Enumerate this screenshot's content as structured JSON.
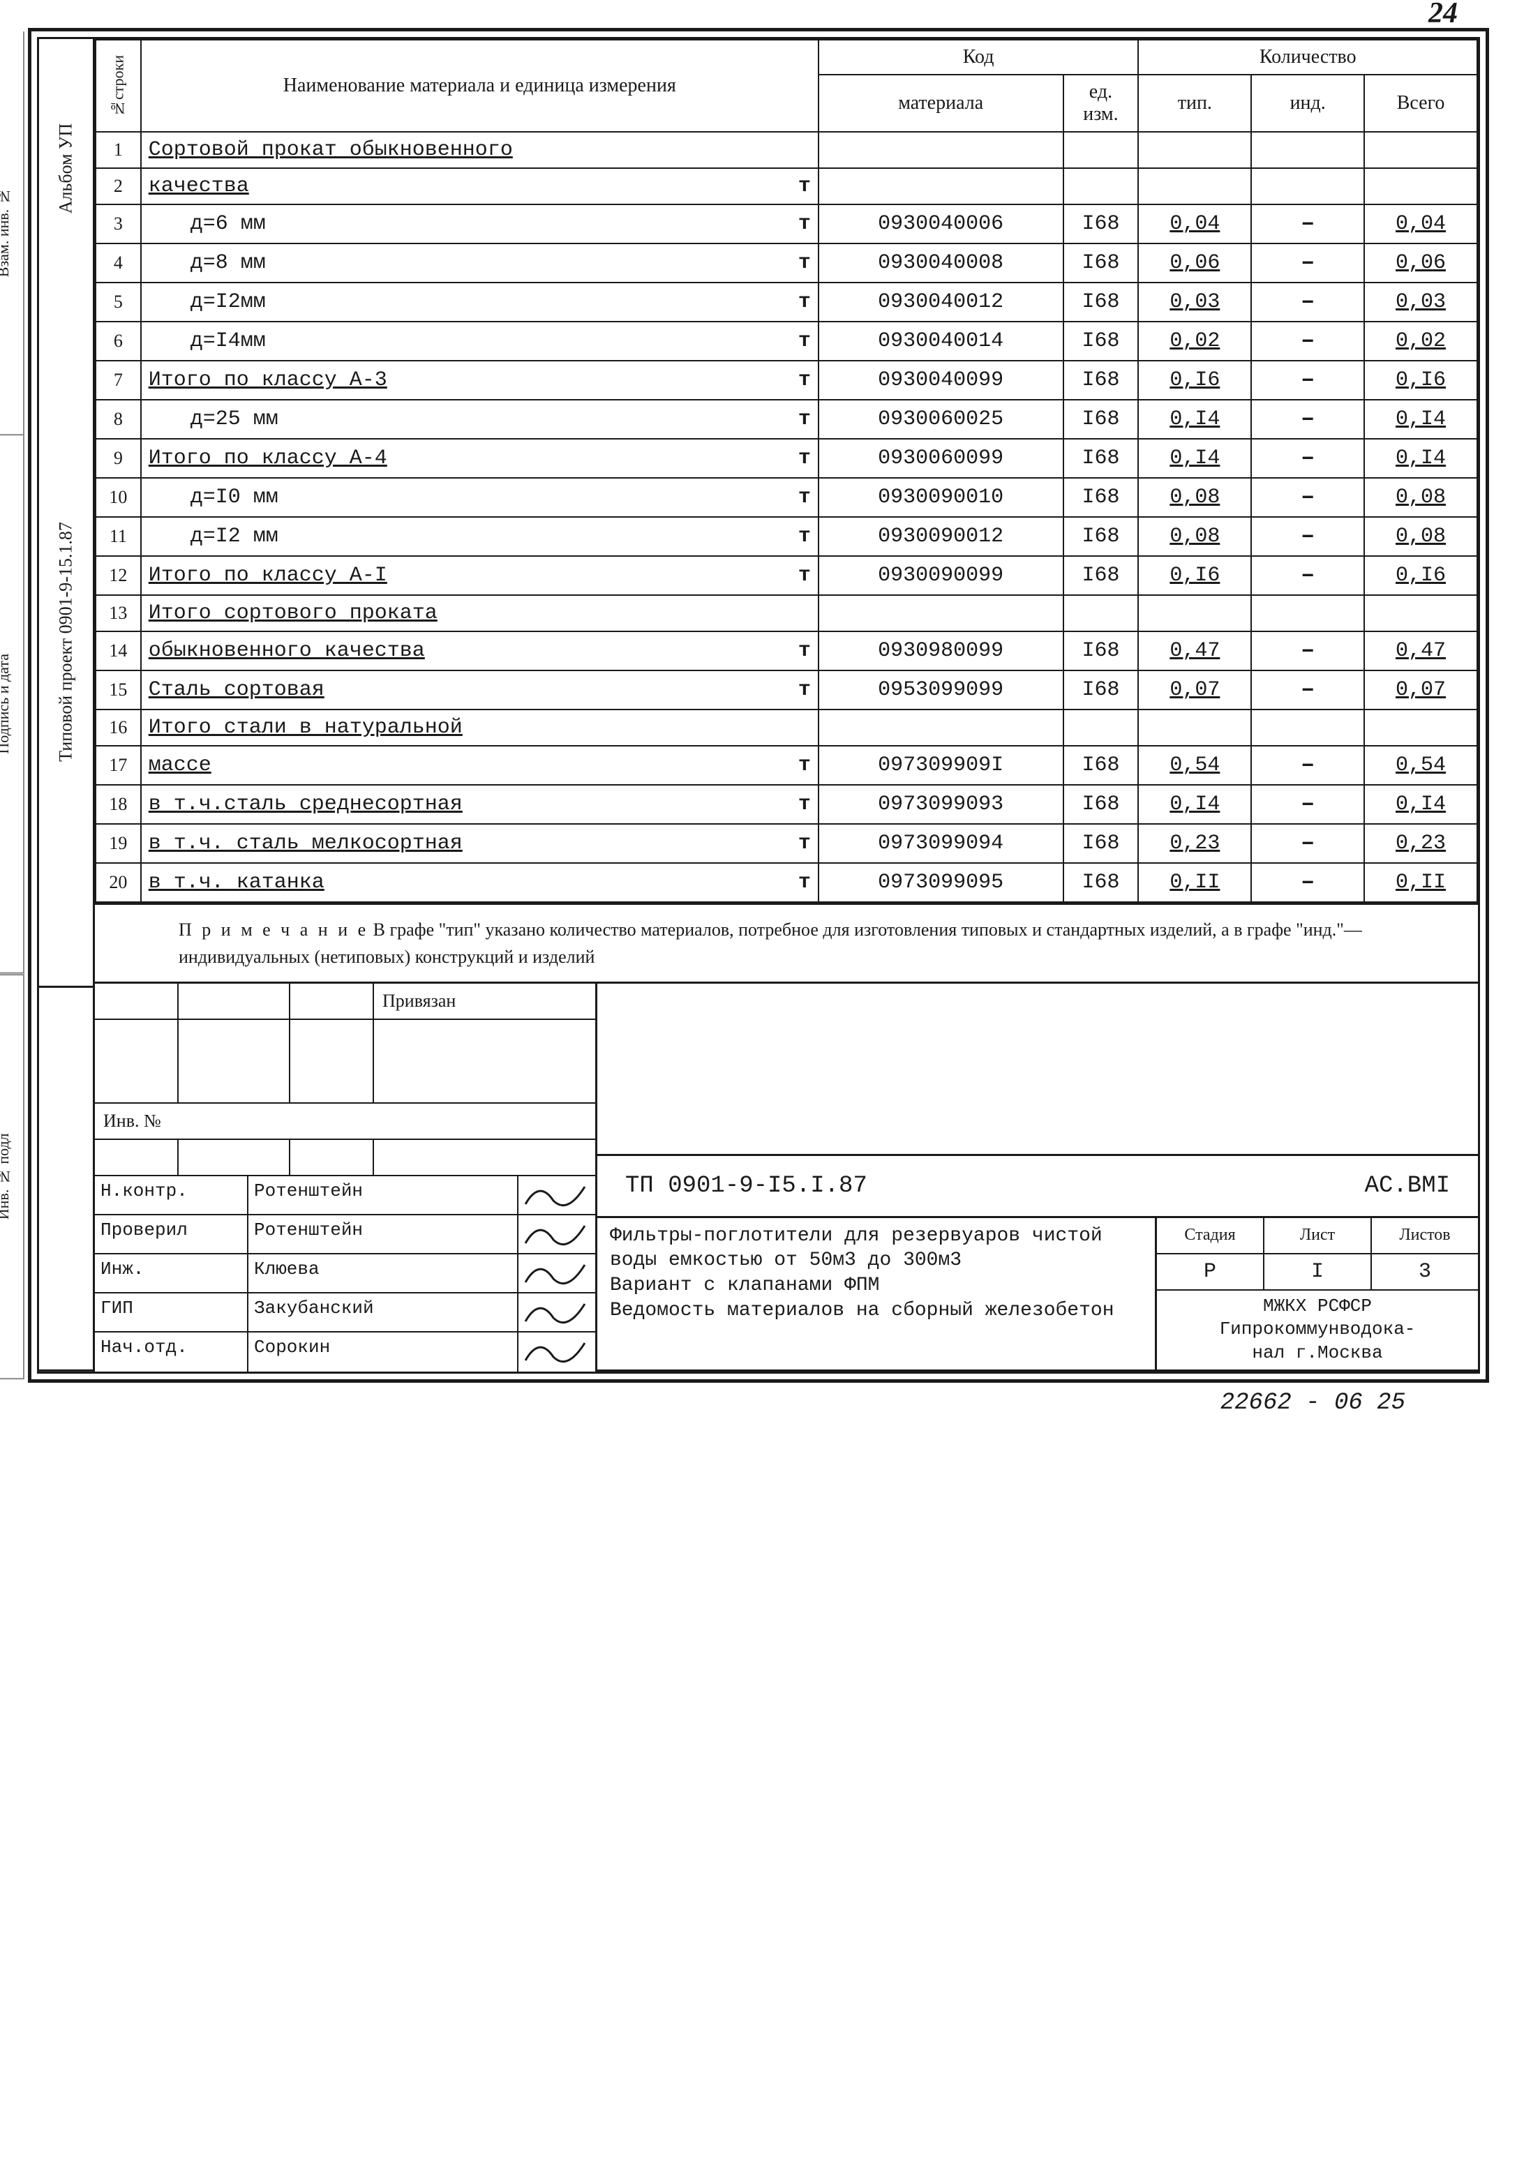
{
  "page_number": "24",
  "footer_code": "22662 - 06  25",
  "side_labels": {
    "album": "Альбом УП",
    "project": "Типовой проект  0901-9-15.1.87"
  },
  "ext_labels": [
    "Взам. инв. №",
    "Подпись и дата",
    "Инв. № подл"
  ],
  "headers": {
    "row_col": "№строки",
    "name": "Наименование материала и единица измерения",
    "code_group": "Код",
    "code_mat": "материала",
    "code_ed": "ед. изм.",
    "qty_group": "Количество",
    "typ": "тип.",
    "ind": "инд.",
    "total": "Всего"
  },
  "rows": [
    {
      "n": "1",
      "name": "Сортовой прокат обыкновенного",
      "indent": false,
      "under": true,
      "unit": "",
      "code": "",
      "ed": "",
      "typ": "",
      "ind": "",
      "tot": ""
    },
    {
      "n": "2",
      "name": "качества",
      "indent": false,
      "under": true,
      "unit": "т",
      "code": "",
      "ed": "",
      "typ": "",
      "ind": "",
      "tot": ""
    },
    {
      "n": "3",
      "name": "д=6 мм",
      "indent": true,
      "under": false,
      "unit": "т",
      "code": "0930040006",
      "ed": "I68",
      "typ": "0,04",
      "ind": "–",
      "tot": "0,04"
    },
    {
      "n": "4",
      "name": "д=8 мм",
      "indent": true,
      "under": false,
      "unit": "т",
      "code": "0930040008",
      "ed": "I68",
      "typ": "0,06",
      "ind": "–",
      "tot": "0,06"
    },
    {
      "n": "5",
      "name": "д=I2мм",
      "indent": true,
      "under": false,
      "unit": "т",
      "code": "0930040012",
      "ed": "I68",
      "typ": "0,03",
      "ind": "–",
      "tot": "0,03"
    },
    {
      "n": "6",
      "name": "д=I4мм",
      "indent": true,
      "under": false,
      "unit": "т",
      "code": "0930040014",
      "ed": "I68",
      "typ": "0,02",
      "ind": "–",
      "tot": "0,02"
    },
    {
      "n": "7",
      "name": "Итого по классу А-3",
      "indent": false,
      "under": true,
      "unit": "т",
      "code": "0930040099",
      "ed": "I68",
      "typ": "0,I6",
      "ind": "–",
      "tot": "0,I6"
    },
    {
      "n": "8",
      "name": "д=25 мм",
      "indent": true,
      "under": false,
      "unit": "т",
      "code": "0930060025",
      "ed": "I68",
      "typ": "0,I4",
      "ind": "–",
      "tot": "0,I4"
    },
    {
      "n": "9",
      "name": "Итого по классу А-4",
      "indent": false,
      "under": true,
      "unit": "т",
      "code": "0930060099",
      "ed": "I68",
      "typ": "0,I4",
      "ind": "–",
      "tot": "0,I4"
    },
    {
      "n": "10",
      "name": "д=I0 мм",
      "indent": true,
      "under": false,
      "unit": "т",
      "code": "0930090010",
      "ed": "I68",
      "typ": "0,08",
      "ind": "–",
      "tot": "0,08"
    },
    {
      "n": "11",
      "name": "д=I2 мм",
      "indent": true,
      "under": false,
      "unit": "т",
      "code": "0930090012",
      "ed": "I68",
      "typ": "0,08",
      "ind": "–",
      "tot": "0,08"
    },
    {
      "n": "12",
      "name": "Итого по классу А-I",
      "indent": false,
      "under": true,
      "unit": "т",
      "code": "0930090099",
      "ed": "I68",
      "typ": "0,I6",
      "ind": "–",
      "tot": "0,I6"
    },
    {
      "n": "13",
      "name": "Итого сортового проката",
      "indent": false,
      "under": true,
      "unit": "",
      "code": "",
      "ed": "",
      "typ": "",
      "ind": "",
      "tot": ""
    },
    {
      "n": "14",
      "name": "обыкновенного качества",
      "indent": false,
      "under": true,
      "unit": "т",
      "code": "0930980099",
      "ed": "I68",
      "typ": "0,47",
      "ind": "–",
      "tot": "0,47"
    },
    {
      "n": "15",
      "name": "Сталь сортовая",
      "indent": false,
      "under": true,
      "unit": "т",
      "code": "0953099099",
      "ed": "I68",
      "typ": "0,07",
      "ind": "–",
      "tot": "0,07"
    },
    {
      "n": "16",
      "name": "Итого стали в натуральной",
      "indent": false,
      "under": true,
      "unit": "",
      "code": "",
      "ed": "",
      "typ": "",
      "ind": "",
      "tot": ""
    },
    {
      "n": "17",
      "name": "массе",
      "indent": false,
      "under": true,
      "unit": "т",
      "code": "097309909I",
      "ed": "I68",
      "typ": "0,54",
      "ind": "–",
      "tot": "0,54"
    },
    {
      "n": "18",
      "name": "в т.ч.сталь среднесортная",
      "indent": false,
      "under": true,
      "unit": "т",
      "code": "0973099093",
      "ed": "I68",
      "typ": "0,I4",
      "ind": "–",
      "tot": "0,I4"
    },
    {
      "n": "19",
      "name": "в т.ч. сталь мелкосортная",
      "indent": false,
      "under": true,
      "unit": "т",
      "code": "0973099094",
      "ed": "I68",
      "typ": "0,23",
      "ind": "–",
      "tot": "0,23"
    },
    {
      "n": "20",
      "name": "в т.ч. катанка",
      "indent": false,
      "under": true,
      "unit": "т",
      "code": "0973099095",
      "ed": "I68",
      "typ": "0,II",
      "ind": "–",
      "tot": "0,II"
    }
  ],
  "note": {
    "label": "П р и м е ч а н и е",
    "text": "В графе \"тип\" указано количество материалов, потребное для изготовления типовых и стандартных изделий, а в графе \"инд.\"— индивидуальных (нетиповых) конструкций и изделий"
  },
  "stamp": {
    "bound": "Привязан",
    "inv": "Инв. №",
    "code": "ТП   0901-9-I5.I.87",
    "series": "АС.ВМI",
    "signatures": [
      {
        "role": "Н.контр.",
        "name": "Ротенштейн"
      },
      {
        "role": "Проверил",
        "name": "Ротенштейн"
      },
      {
        "role": "Инж.",
        "name": "Клюева"
      },
      {
        "role": "ГИП",
        "name": "Закубанский"
      },
      {
        "role": "Нач.отд.",
        "name": "Сорокин"
      }
    ],
    "desc": "Фильтры-поглотители для резервуаров чистой воды емкостью от 50м3 до 300м3\nВариант с клапанами ФПМ\nВедомость материалов на сборный железобетон",
    "mini_headers": [
      "Стадия",
      "Лист",
      "Листов"
    ],
    "mini_values": [
      "Р",
      "I",
      "3"
    ],
    "org": "МЖКХ РСФСР\nГипрокоммунводока-\nнал г.Москва"
  }
}
